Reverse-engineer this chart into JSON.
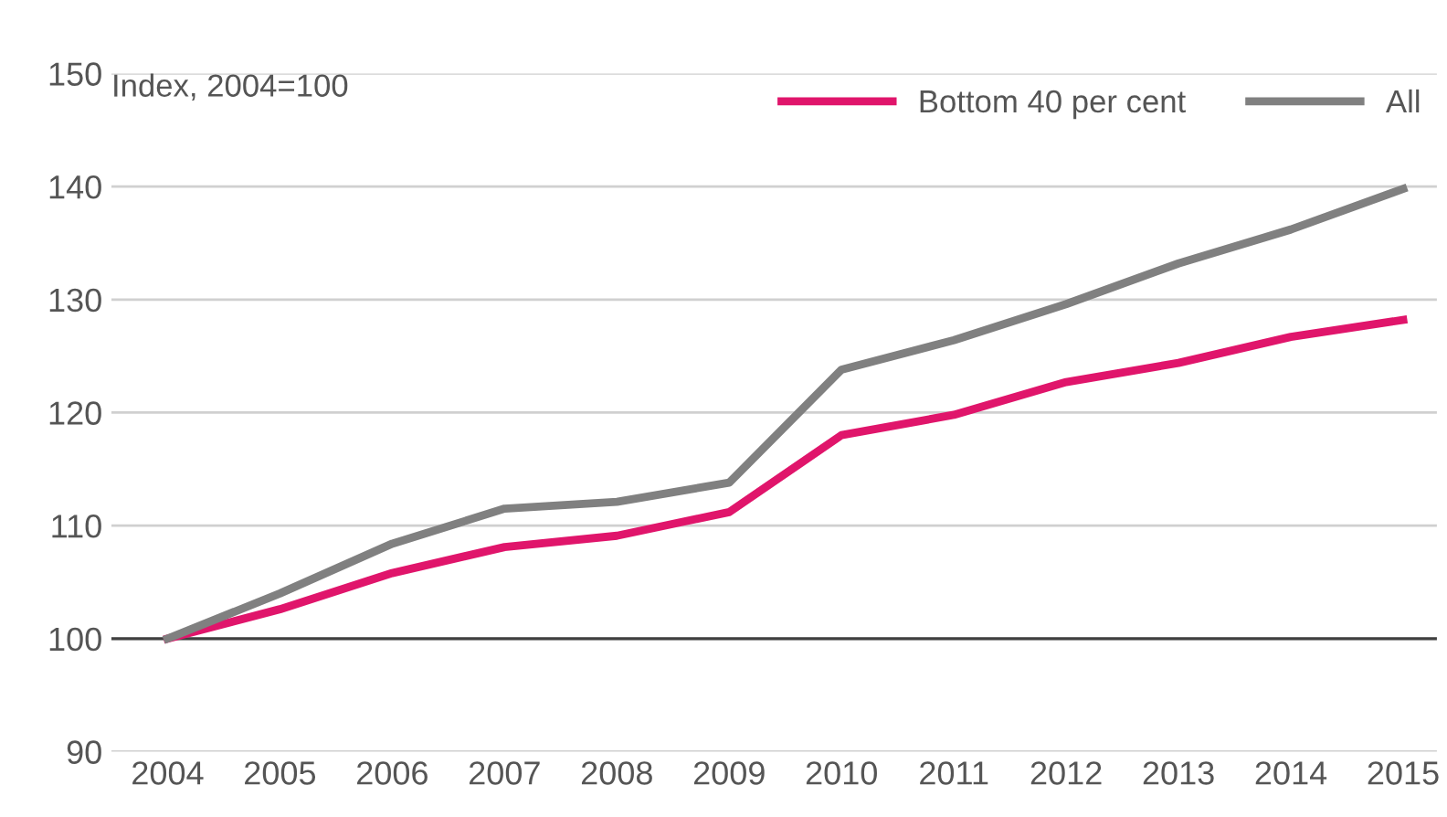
{
  "chart_data": {
    "type": "line",
    "ylabel": "Index, 2004=100",
    "categories": [
      "2004",
      "2005",
      "2006",
      "2007",
      "2008",
      "2009",
      "2010",
      "2011",
      "2012",
      "2013",
      "2014",
      "2015"
    ],
    "series": [
      {
        "name": "Bottom 40 per cent",
        "color": "#e0156b",
        "values": [
          100,
          102.6,
          105.8,
          108.1,
          109.1,
          111.2,
          118.0,
          119.8,
          122.7,
          124.4,
          126.7,
          128.2
        ]
      },
      {
        "name": "All",
        "color": "#808080",
        "values": [
          100,
          104.0,
          108.4,
          111.5,
          112.1,
          113.8,
          123.8,
          126.4,
          129.6,
          133.2,
          136.2,
          139.8
        ]
      }
    ],
    "ylim": [
      90,
      150
    ],
    "yticks": [
      90,
      100,
      110,
      120,
      130,
      140,
      150
    ],
    "ref_lines": [
      {
        "axis": "y",
        "value": 100,
        "color": "#404040"
      }
    ],
    "grid": "y",
    "legend": "top right",
    "marker": "none",
    "line_style": "solid"
  }
}
